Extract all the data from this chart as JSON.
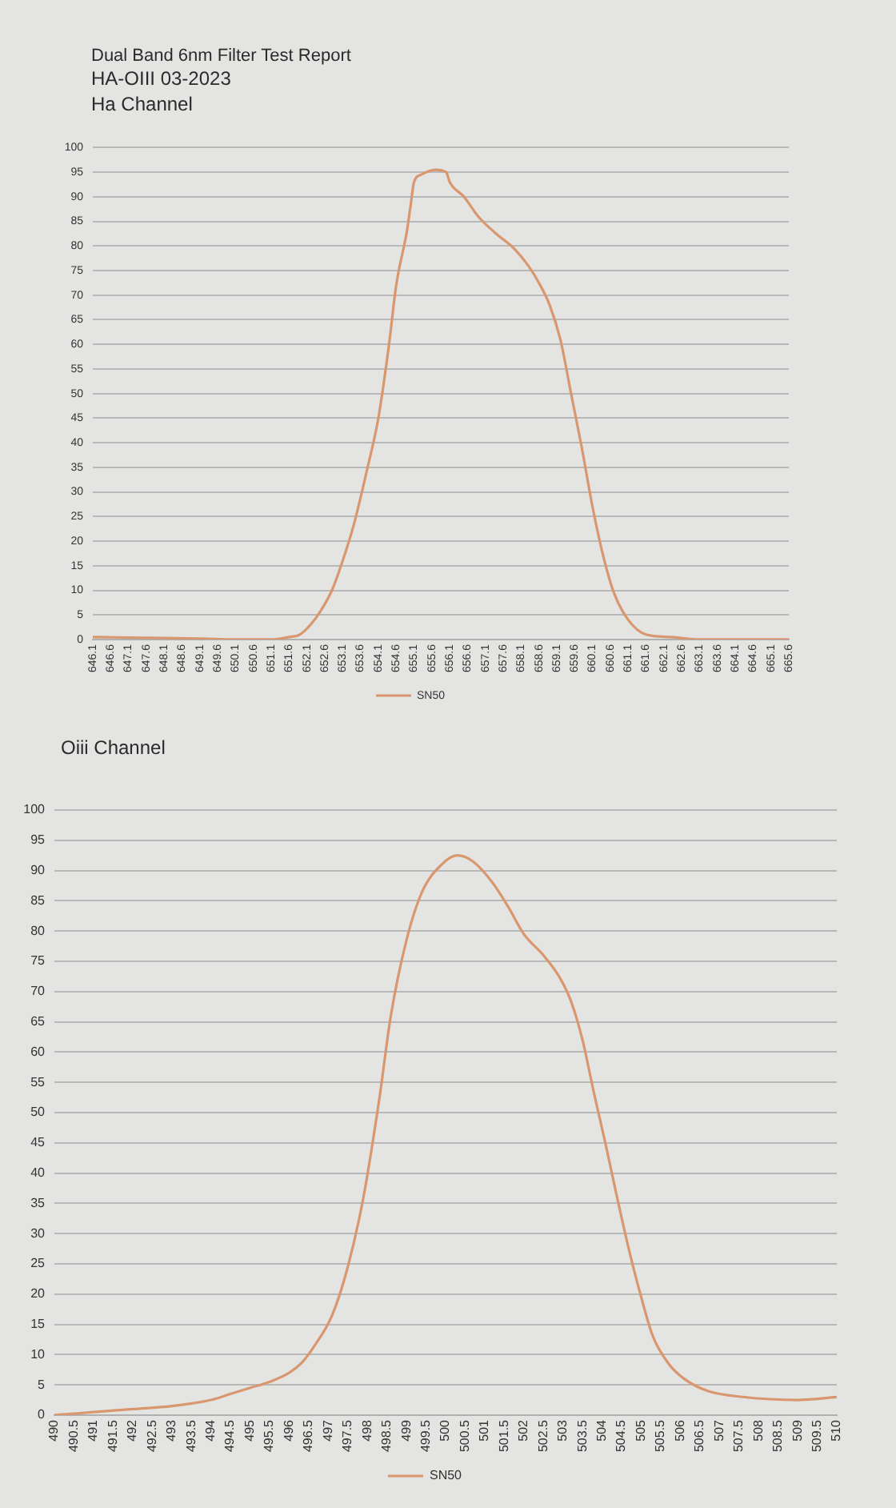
{
  "chart_data": [
    {
      "type": "line",
      "title": "Dual Band 6nm Filter Test Report",
      "subtitle": "HA-OIII 03-2023",
      "annotations": [
        "Ha Channel"
      ],
      "x": [
        646.1,
        647.1,
        648.1,
        649.1,
        650.1,
        651.1,
        651.6,
        651.9,
        652.2,
        652.5,
        652.8,
        653.1,
        653.4,
        653.8,
        654.1,
        654.4,
        654.6,
        654.9,
        655,
        655.1,
        655.3,
        655.7,
        656,
        656.1,
        656.5,
        656.9,
        657.4,
        657.9,
        658.3,
        658.6,
        658.9,
        659.2,
        659.5,
        659.8,
        660.1,
        660.4,
        660.7,
        661.1,
        661.6,
        662.3,
        663.1,
        664.1,
        665.1,
        665.6
      ],
      "series": [
        {
          "name": "SN50",
          "color": "#d9976f",
          "values": [
            0.5,
            0.4,
            0.3,
            0.2,
            0,
            0,
            0.5,
            1,
            3,
            6,
            10,
            16,
            23,
            35,
            45,
            60,
            72,
            83,
            88,
            93,
            94.5,
            95.5,
            95,
            93,
            90,
            86,
            82.5,
            79.5,
            76,
            72.5,
            68,
            61,
            50,
            39,
            27,
            17,
            9.5,
            4,
            1,
            0.5,
            0,
            0,
            0,
            0
          ]
        }
      ],
      "xlim": [
        646.1,
        665.6
      ],
      "xticks": [
        646.1,
        646.6,
        647.1,
        647.6,
        648.1,
        648.6,
        649.1,
        649.6,
        650.1,
        650.6,
        651.1,
        651.6,
        652.1,
        652.6,
        653.1,
        653.6,
        654.1,
        654.6,
        655.1,
        655.6,
        656.1,
        656.6,
        657.1,
        657.6,
        658.1,
        658.6,
        659.1,
        659.6,
        660.1,
        660.6,
        661.1,
        661.6,
        662.1,
        662.6,
        663.1,
        663.6,
        664.1,
        664.6,
        665.1,
        665.6
      ],
      "ylim": [
        0,
        100
      ],
      "yticks": [
        0,
        5,
        10,
        15,
        20,
        25,
        30,
        35,
        40,
        45,
        50,
        55,
        60,
        65,
        70,
        75,
        80,
        85,
        90,
        95,
        100
      ],
      "grid": "y",
      "legend": "bottom",
      "marker": "none",
      "line_style": "solid"
    },
    {
      "type": "line",
      "title": "Oiii Channel",
      "x": [
        490,
        491,
        492,
        493,
        494,
        494.5,
        495,
        495.5,
        496,
        496.3,
        496.6,
        497.1,
        497.5,
        497.9,
        498.3,
        498.6,
        499,
        499.4,
        499.9,
        500.3,
        500.7,
        501.2,
        501.6,
        502,
        502.5,
        502.9,
        503.2,
        503.5,
        503.8,
        504.1,
        504.4,
        504.7,
        505,
        505.3,
        505.7,
        506.1,
        506.7,
        507.6,
        509,
        510
      ],
      "series": [
        {
          "name": "SN50",
          "color": "#d9976f",
          "values": [
            0,
            0.5,
            1,
            1.5,
            2.5,
            3.5,
            4.5,
            5.5,
            7,
            8.5,
            11,
            16.5,
            24.5,
            36,
            52,
            66,
            78.5,
            86.5,
            91,
            92.5,
            91.5,
            88,
            84,
            79.5,
            76,
            72.5,
            68.5,
            62,
            53,
            44.5,
            35.5,
            27,
            19.5,
            13,
            8.5,
            6,
            4,
            3,
            2.5,
            3
          ]
        }
      ],
      "xlim": [
        490,
        510
      ],
      "xticks": [
        490,
        490.5,
        491,
        491.5,
        492,
        492.5,
        493,
        493.5,
        494,
        494.5,
        495,
        495.5,
        496,
        496.5,
        497,
        497.5,
        498,
        498.5,
        499,
        499.5,
        500,
        500.5,
        501,
        501.5,
        502,
        502.5,
        503,
        503.5,
        504,
        504.5,
        505,
        505.5,
        506,
        506.5,
        507,
        507.5,
        508,
        508.5,
        509,
        509.5,
        510
      ],
      "ylim": [
        0,
        100
      ],
      "yticks": [
        0,
        5,
        10,
        15,
        20,
        25,
        30,
        35,
        40,
        45,
        50,
        55,
        60,
        65,
        70,
        75,
        80,
        85,
        90,
        95,
        100
      ],
      "grid": "y",
      "legend": "bottom",
      "marker": "none",
      "line_style": "solid"
    }
  ]
}
